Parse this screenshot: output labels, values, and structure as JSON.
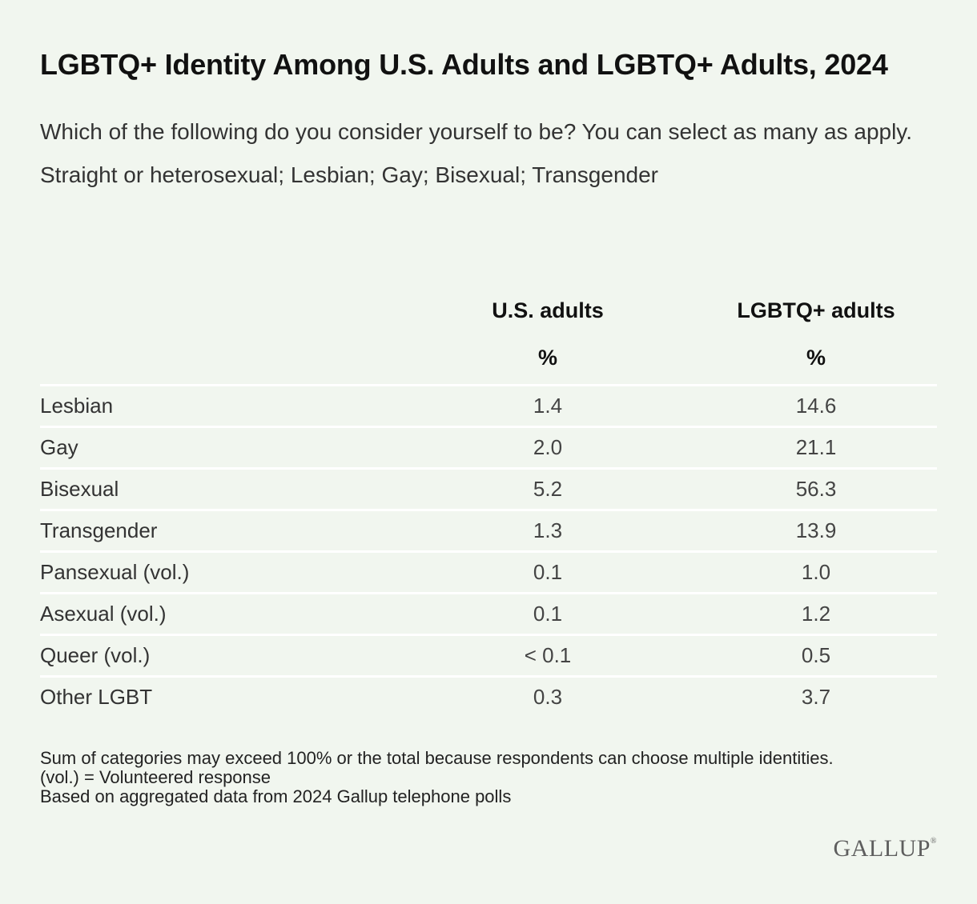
{
  "chart_data": {
    "type": "table",
    "title": "LGBTQ+ Identity Among U.S. Adults and LGBTQ+ Adults, 2024",
    "subtitle": "Which of the following do you consider yourself to be? You can select as many as apply. Straight or heterosexual; Lesbian; Gay; Bisexual; Transgender",
    "columns": [
      "U.S. adults",
      "LGBTQ+ adults"
    ],
    "units": [
      "%",
      "%"
    ],
    "rows": [
      {
        "label": "Lesbian",
        "values": [
          "1.4",
          "14.6"
        ]
      },
      {
        "label": "Gay",
        "values": [
          "2.0",
          "21.1"
        ]
      },
      {
        "label": "Bisexual",
        "values": [
          "5.2",
          "56.3"
        ]
      },
      {
        "label": "Transgender",
        "values": [
          "1.3",
          "13.9"
        ]
      },
      {
        "label": "Pansexual (vol.)",
        "values": [
          "0.1",
          "1.0"
        ]
      },
      {
        "label": "Asexual (vol.)",
        "values": [
          "0.1",
          "1.2"
        ]
      },
      {
        "label": "Queer (vol.)",
        "values": [
          "< 0.1",
          "0.5"
        ]
      },
      {
        "label": "Other LGBT",
        "values": [
          "0.3",
          "3.7"
        ]
      }
    ],
    "notes": [
      "Sum of categories may exceed 100% or the total because respondents can choose multiple identities.",
      "(vol.) = Volunteered response",
      "Based on aggregated data from 2024 Gallup telephone polls"
    ]
  },
  "brand": {
    "logo_text": "GALLUP",
    "logo_mark": "®"
  },
  "colors": {
    "background": "#f1f6ef",
    "row_divider": "#ffffff",
    "title": "#111111",
    "logo": "#5e5e5e"
  }
}
